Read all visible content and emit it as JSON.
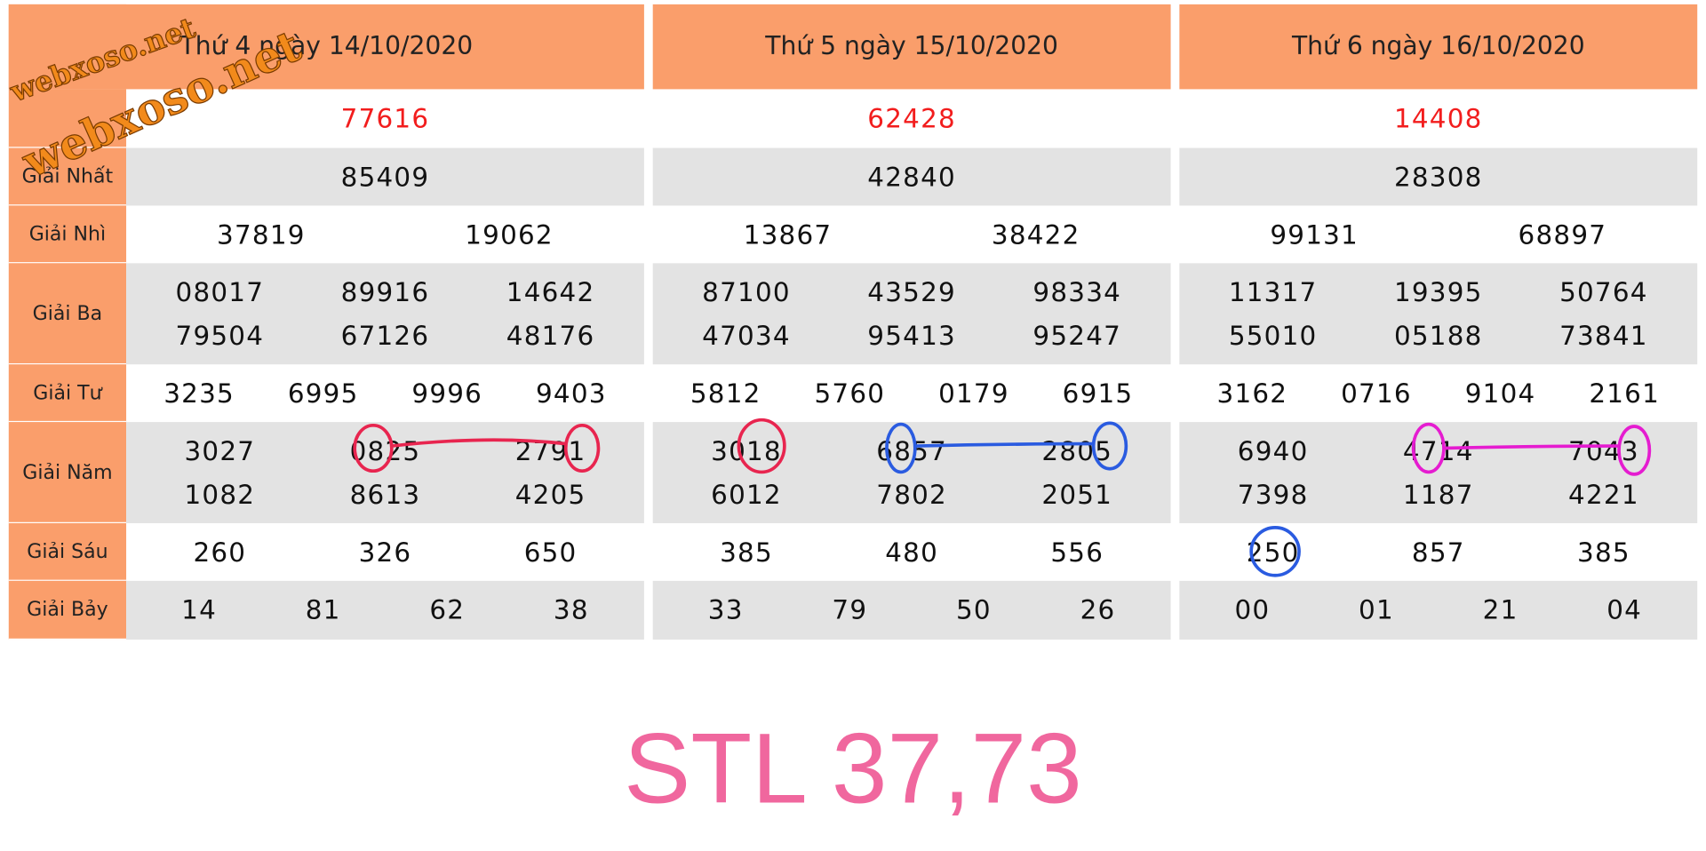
{
  "watermark": [
    "webxoso.net",
    "webxoso.net"
  ],
  "labels": [
    "Giải Nhất",
    "Giải Nhì",
    "Giải Ba",
    "Giải Tư",
    "Giải Năm",
    "Giải Sáu",
    "Giải Bảy"
  ],
  "days": [
    {
      "title": "Thứ 4 ngày 14/10/2020",
      "special": "77616",
      "prizes": [
        [
          "85409"
        ],
        [
          "37819",
          "19062"
        ],
        [
          "08017",
          "89916",
          "14642",
          "79504",
          "67126",
          "48176"
        ],
        [
          "3235",
          "6995",
          "9996",
          "9403"
        ],
        [
          "3027",
          "0825",
          "2791",
          "1082",
          "8613",
          "4205"
        ],
        [
          "260",
          "326",
          "650"
        ],
        [
          "14",
          "81",
          "62",
          "38"
        ]
      ]
    },
    {
      "title": "Thứ 5 ngày 15/10/2020",
      "special": "62428",
      "prizes": [
        [
          "42840"
        ],
        [
          "13867",
          "38422"
        ],
        [
          "87100",
          "43529",
          "98334",
          "47034",
          "95413",
          "95247"
        ],
        [
          "5812",
          "5760",
          "0179",
          "6915"
        ],
        [
          "3018",
          "6857",
          "2805",
          "6012",
          "7802",
          "2051"
        ],
        [
          "385",
          "480",
          "556"
        ],
        [
          "33",
          "79",
          "50",
          "26"
        ]
      ]
    },
    {
      "title": "Thứ 6 ngày 16/10/2020",
      "special": "14408",
      "prizes": [
        [
          "28308"
        ],
        [
          "99131",
          "68897"
        ],
        [
          "11317",
          "19395",
          "50764",
          "55010",
          "05188",
          "73841"
        ],
        [
          "3162",
          "0716",
          "9104",
          "2161"
        ],
        [
          "6940",
          "4714",
          "7043",
          "7398",
          "1187",
          "4221"
        ],
        [
          "250",
          "857",
          "385"
        ],
        [
          "00",
          "01",
          "21",
          "04"
        ]
      ]
    }
  ],
  "footer": "STL 37,73"
}
